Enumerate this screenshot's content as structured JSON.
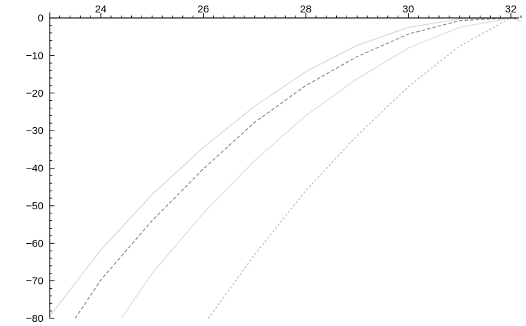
{
  "chart_data": {
    "type": "line",
    "title": "",
    "xlabel": "",
    "ylabel": "",
    "xlim": [
      23.0,
      32.25
    ],
    "ylim": [
      -80,
      0
    ],
    "grid": false,
    "legend": "none",
    "x_axis_position": "top",
    "x_ticks": [
      24,
      26,
      28,
      30,
      32
    ],
    "x_minor_ticks": [
      23.2,
      23.4,
      23.6,
      23.8,
      24.2,
      24.4,
      24.6,
      24.8,
      25,
      25.2,
      25.4,
      25.6,
      25.8,
      26.2,
      26.4,
      26.6,
      26.8,
      27,
      27.2,
      27.4,
      27.6,
      27.8,
      28.2,
      28.4,
      28.6,
      28.8,
      29,
      29.2,
      29.4,
      29.6,
      29.8,
      30.2,
      30.4,
      30.6,
      30.8,
      31,
      31.2,
      31.4,
      31.6,
      31.8,
      32.2
    ],
    "x_tick_labels": [
      "24",
      "26",
      "28",
      "30",
      "32"
    ],
    "y_ticks": [
      0,
      -10,
      -20,
      -30,
      -40,
      -50,
      -60,
      -70,
      -80
    ],
    "y_tick_labels": [
      "0",
      "−10",
      "−20",
      "−30",
      "−40",
      "−50",
      "−60",
      "−70",
      "−80"
    ],
    "series": [
      {
        "color": "#d8d8d8",
        "style": "solid",
        "x": [
          23.0,
          24.0,
          25.0,
          26.0,
          27.0,
          28.0,
          29.0,
          30.0,
          31.0,
          32.0,
          32.2
        ],
        "y": [
          -79.5,
          -61.8,
          -47.0,
          -34.5,
          -23.5,
          -14.3,
          -7.3,
          -2.5,
          -0.3,
          0,
          -0.9
        ]
      },
      {
        "color": "#888888",
        "style": "dashed",
        "x": [
          23.5,
          24.0,
          25.0,
          26.0,
          27.0,
          28.0,
          29.0,
          30.0,
          31.0,
          32.0,
          32.1
        ],
        "y": [
          -80,
          -69.8,
          -54.0,
          -40.2,
          -27.8,
          -18.0,
          -10.3,
          -4.3,
          -0.7,
          0,
          -0.2
        ]
      },
      {
        "color": "#dddddd",
        "style": "solid",
        "x": [
          24.4,
          25.0,
          26.0,
          27.0,
          28.0,
          29.0,
          30.0,
          31.0,
          32.0,
          32.1
        ],
        "y": [
          -80,
          -68.0,
          -52.0,
          -38.0,
          -26.0,
          -16.2,
          -8.0,
          -2.5,
          0,
          0.2
        ]
      },
      {
        "color": "#b8b8b8",
        "style": "dotted",
        "x": [
          26.1,
          27.0,
          28.0,
          29.0,
          30.0,
          31.0,
          32.0
        ],
        "y": [
          -80,
          -63.0,
          -46.0,
          -31.3,
          -18.3,
          -7.5,
          0
        ]
      }
    ]
  }
}
